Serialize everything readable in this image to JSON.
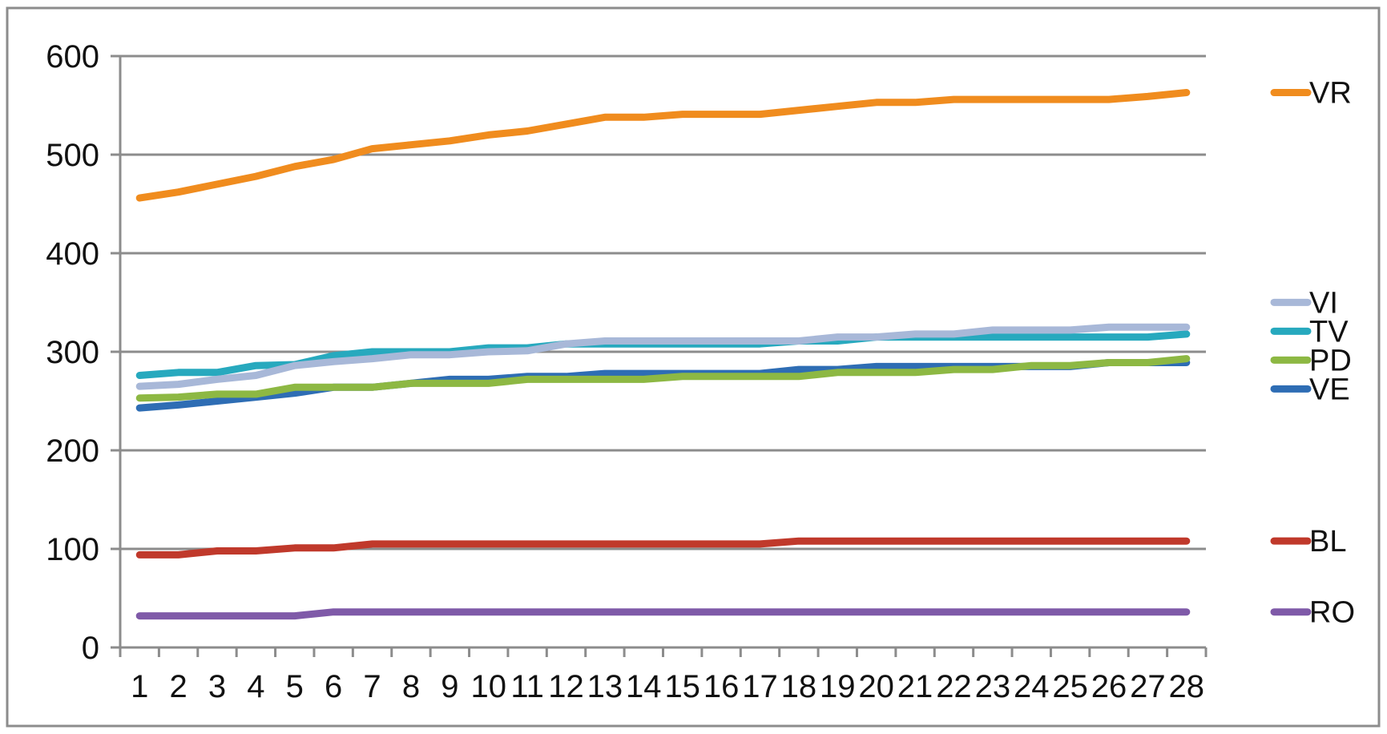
{
  "chart_data": {
    "type": "line",
    "x": [
      1,
      2,
      3,
      4,
      5,
      6,
      7,
      8,
      9,
      10,
      11,
      12,
      13,
      14,
      15,
      16,
      17,
      18,
      19,
      20,
      21,
      22,
      23,
      24,
      25,
      26,
      27,
      28
    ],
    "x_tick_labels": [
      "1",
      "2",
      "3",
      "4",
      "5",
      "6",
      "7",
      "8",
      "9",
      "10",
      "11",
      "12",
      "13",
      "14",
      "15",
      "16",
      "17",
      "18",
      "19",
      "20",
      "21",
      "22",
      "23",
      "24",
      "25",
      "26",
      "27",
      "28"
    ],
    "ylim": [
      0,
      600
    ],
    "y_ticks": [
      0,
      100,
      200,
      300,
      400,
      500,
      600
    ],
    "y_tick_labels": [
      "0",
      "100",
      "200",
      "300",
      "400",
      "500",
      "600"
    ],
    "grid": "horizontal",
    "legend_position": "right",
    "series": [
      {
        "name": "VR",
        "color": "#F08C1E",
        "values": [
          456,
          462,
          470,
          478,
          488,
          495,
          506,
          510,
          514,
          520,
          524,
          531,
          538,
          538,
          541,
          541,
          541,
          545,
          549,
          553,
          553,
          556,
          556,
          556,
          556,
          556,
          559,
          563
        ]
      },
      {
        "name": "TV",
        "color": "#27A9BE",
        "values": [
          276,
          279,
          279,
          286,
          287,
          296,
          300,
          300,
          300,
          304,
          304,
          308,
          308,
          308,
          308,
          308,
          308,
          311,
          311,
          315,
          315,
          315,
          315,
          315,
          315,
          315,
          315,
          318
        ]
      },
      {
        "name": "VI",
        "color": "#A8B8D8",
        "values": [
          265,
          267,
          272,
          276,
          286,
          290,
          293,
          297,
          297,
          300,
          301,
          308,
          311,
          311,
          311,
          311,
          311,
          311,
          315,
          315,
          318,
          318,
          322,
          322,
          322,
          325,
          325,
          325
        ]
      },
      {
        "name": "VE",
        "color": "#2E6DB4",
        "values": [
          243,
          246,
          250,
          254,
          258,
          264,
          264,
          268,
          272,
          272,
          275,
          275,
          278,
          278,
          278,
          278,
          278,
          282,
          282,
          285,
          285,
          285,
          285,
          285,
          285,
          289,
          289,
          289
        ]
      },
      {
        "name": "PD",
        "color": "#8DB843",
        "values": [
          253,
          254,
          257,
          257,
          264,
          264,
          264,
          268,
          268,
          268,
          272,
          272,
          272,
          272,
          275,
          275,
          275,
          275,
          279,
          279,
          279,
          282,
          282,
          286,
          286,
          289,
          289,
          293
        ]
      },
      {
        "name": "BL",
        "color": "#C0392B",
        "values": [
          94,
          94,
          98,
          98,
          101,
          101,
          105,
          105,
          105,
          105,
          105,
          105,
          105,
          105,
          105,
          105,
          105,
          108,
          108,
          108,
          108,
          108,
          108,
          108,
          108,
          108,
          108,
          108
        ]
      },
      {
        "name": "RO",
        "color": "#7F5AA8",
        "values": [
          32,
          32,
          32,
          32,
          32,
          36,
          36,
          36,
          36,
          36,
          36,
          36,
          36,
          36,
          36,
          36,
          36,
          36,
          36,
          36,
          36,
          36,
          36,
          36,
          36,
          36,
          36,
          36
        ]
      }
    ]
  }
}
